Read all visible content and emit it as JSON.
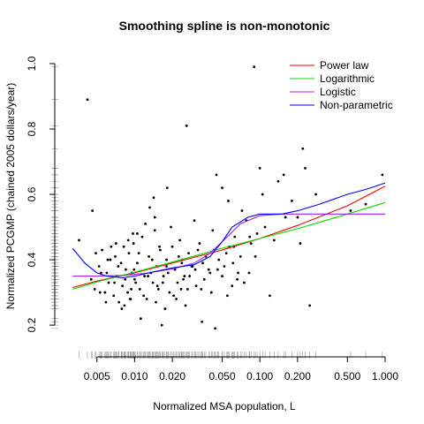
{
  "chart_data": {
    "type": "scatter",
    "title": "Smoothing spline is non-monotonic",
    "xlabel": "Normalized MSA population, L",
    "ylabel": "Normalized PCGMP (chained 2005 dollars/year)",
    "x_scale": "log",
    "xlim": [
      0.0028,
      1.0
    ],
    "ylim": [
      0.13,
      1.0
    ],
    "x_ticks": [
      0.005,
      0.01,
      0.02,
      0.05,
      0.1,
      0.2,
      0.5,
      1.0
    ],
    "x_tick_labels": [
      "0.005",
      "0.010",
      "0.020",
      "0.050",
      "0.100",
      "0.200",
      "0.500",
      "1.000"
    ],
    "y_ticks": [
      0.2,
      0.4,
      0.6,
      0.8,
      1.0
    ],
    "y_tick_labels": [
      "0.2",
      "0.4",
      "0.6",
      "0.8",
      "1.0"
    ],
    "grid": false,
    "rug": true,
    "legend": {
      "position": "top-right",
      "entries": [
        {
          "label": "Power law",
          "color": "#ff0000"
        },
        {
          "label": "Logarithmic",
          "color": "#00dd00"
        },
        {
          "label": "Logistic",
          "color": "#a020f0"
        },
        {
          "label": "Non-parametric",
          "color": "#0000ff"
        }
      ]
    },
    "curves": [
      {
        "name": "Power law",
        "color": "#ff0000",
        "x": [
          0.0032,
          0.005,
          0.01,
          0.02,
          0.05,
          0.1,
          0.2,
          0.5,
          1.0
        ],
        "y": [
          0.315,
          0.335,
          0.36,
          0.39,
          0.43,
          0.465,
          0.505,
          0.565,
          0.625
        ]
      },
      {
        "name": "Logarithmic",
        "color": "#00dd00",
        "x": [
          0.0032,
          0.005,
          0.01,
          0.02,
          0.05,
          0.1,
          0.2,
          0.5,
          1.0
        ],
        "y": [
          0.31,
          0.332,
          0.362,
          0.393,
          0.435,
          0.465,
          0.495,
          0.54,
          0.575
        ]
      },
      {
        "name": "Logistic",
        "color": "#a020f0",
        "x": [
          0.0032,
          0.005,
          0.008,
          0.012,
          0.02,
          0.03,
          0.04,
          0.05,
          0.07,
          0.1,
          0.15,
          0.2,
          0.5,
          1.0
        ],
        "y": [
          0.35,
          0.35,
          0.352,
          0.358,
          0.372,
          0.39,
          0.42,
          0.455,
          0.51,
          0.535,
          0.54,
          0.54,
          0.54,
          0.54
        ]
      },
      {
        "name": "Non-parametric",
        "color": "#0000ff",
        "x": [
          0.0032,
          0.004,
          0.005,
          0.006,
          0.008,
          0.01,
          0.015,
          0.02,
          0.03,
          0.04,
          0.05,
          0.06,
          0.08,
          0.1,
          0.15,
          0.2,
          0.3,
          0.5,
          0.7,
          1.0
        ],
        "y": [
          0.435,
          0.39,
          0.36,
          0.35,
          0.345,
          0.35,
          0.365,
          0.375,
          0.385,
          0.41,
          0.455,
          0.5,
          0.53,
          0.54,
          0.54,
          0.55,
          0.57,
          0.6,
          0.615,
          0.635
        ]
      }
    ],
    "points": {
      "x": [
        0.0036,
        0.0042,
        0.0046,
        0.0055,
        0.0065,
        0.01,
        0.018,
        0.026,
        0.044,
        0.09,
        0.1,
        0.105,
        0.14,
        0.155,
        0.18,
        0.2,
        0.23,
        0.21,
        0.28,
        0.05,
        0.045,
        0.22,
        0.53,
        0.7,
        0.95,
        0.05,
        0.06,
        0.12,
        0.25,
        0.03,
        0.0045,
        0.0048,
        0.0052,
        0.0058,
        0.006,
        0.0062,
        0.0068,
        0.007,
        0.0072,
        0.0075,
        0.0078,
        0.008,
        0.0082,
        0.0085,
        0.0088,
        0.009,
        0.0092,
        0.0095,
        0.0098,
        0.0102,
        0.0105,
        0.011,
        0.0115,
        0.012,
        0.0125,
        0.013,
        0.0135,
        0.014,
        0.0145,
        0.015,
        0.0155,
        0.016,
        0.017,
        0.018,
        0.019,
        0.02,
        0.021,
        0.022,
        0.023,
        0.024,
        0.025,
        0.027,
        0.029,
        0.031,
        0.033,
        0.035,
        0.037,
        0.04,
        0.043,
        0.047,
        0.052,
        0.057,
        0.063,
        0.07,
        0.078,
        0.085,
        0.095,
        0.11,
        0.13,
        0.16,
        0.0049,
        0.0054,
        0.0059,
        0.0064,
        0.0069,
        0.0074,
        0.0079,
        0.0084,
        0.0089,
        0.0094,
        0.0099,
        0.0108,
        0.0118,
        0.0128,
        0.0138,
        0.0148,
        0.0158,
        0.0168,
        0.0185,
        0.0205,
        0.0225,
        0.0245,
        0.0265,
        0.0285,
        0.032,
        0.036,
        0.041,
        0.046,
        0.054,
        0.061,
        0.067,
        0.075,
        0.083,
        0.092,
        0.0053,
        0.0061,
        0.0071,
        0.0083,
        0.0097,
        0.0112,
        0.0132,
        0.0152,
        0.0175,
        0.0195,
        0.0215,
        0.0238,
        0.0275,
        0.034,
        0.039,
        0.055,
        0.072,
        0.082,
        0.056,
        0.066,
        0.0105,
        0.0122,
        0.0142,
        0.0165,
        0.0182,
        0.0235,
        0.0255,
        0.0305,
        0.0345,
        0.042,
        0.062,
        0.0145,
        0.0093
      ],
      "y": [
        0.46,
        0.89,
        0.55,
        0.43,
        0.44,
        0.34,
        0.38,
        0.81,
        0.19,
        0.99,
        0.68,
        0.6,
        0.64,
        0.66,
        0.58,
        0.53,
        0.68,
        0.45,
        0.6,
        0.62,
        0.66,
        0.74,
        0.55,
        0.57,
        0.66,
        0.35,
        0.32,
        0.29,
        0.26,
        0.52,
        0.34,
        0.31,
        0.38,
        0.3,
        0.36,
        0.33,
        0.29,
        0.41,
        0.35,
        0.27,
        0.39,
        0.32,
        0.44,
        0.37,
        0.3,
        0.42,
        0.28,
        0.36,
        0.45,
        0.33,
        0.39,
        0.31,
        0.47,
        0.35,
        0.28,
        0.41,
        0.36,
        0.33,
        0.49,
        0.38,
        0.31,
        0.43,
        0.35,
        0.4,
        0.3,
        0.44,
        0.37,
        0.33,
        0.46,
        0.4,
        0.35,
        0.42,
        0.38,
        0.32,
        0.45,
        0.39,
        0.41,
        0.36,
        0.43,
        0.4,
        0.38,
        0.44,
        0.47,
        0.41,
        0.52,
        0.45,
        0.48,
        0.5,
        0.46,
        0.53,
        0.42,
        0.36,
        0.27,
        0.4,
        0.33,
        0.38,
        0.25,
        0.34,
        0.46,
        0.31,
        0.37,
        0.42,
        0.29,
        0.35,
        0.4,
        0.27,
        0.44,
        0.33,
        0.36,
        0.29,
        0.41,
        0.34,
        0.31,
        0.38,
        0.43,
        0.34,
        0.3,
        0.37,
        0.42,
        0.39,
        0.36,
        0.33,
        0.47,
        0.41,
        0.3,
        0.4,
        0.45,
        0.26,
        0.48,
        0.22,
        0.56,
        0.32,
        0.25,
        0.5,
        0.28,
        0.39,
        0.35,
        0.31,
        0.37,
        0.29,
        0.55,
        0.36,
        0.58,
        0.34,
        0.48,
        0.51,
        0.59,
        0.2,
        0.62,
        0.31,
        0.26,
        0.37,
        0.21,
        0.49,
        0.44,
        0.53,
        0.28
      ]
    }
  }
}
